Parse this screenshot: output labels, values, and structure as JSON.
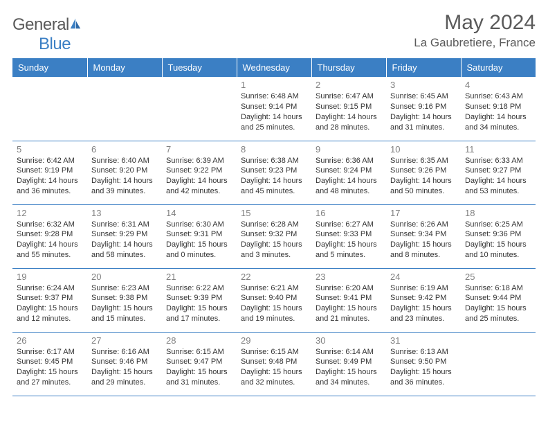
{
  "logo": {
    "text_general": "General",
    "text_blue": "Blue"
  },
  "header": {
    "title": "May 2024",
    "location": "La Gaubretiere, France"
  },
  "colors": {
    "header_bg": "#3b7fc4",
    "header_text": "#ffffff",
    "daynum": "#808080",
    "cell_text": "#333333",
    "rule": "#3b7fc4",
    "title": "#5a5a5a"
  },
  "typography": {
    "title_fontsize": 30,
    "location_fontsize": 17,
    "header_fontsize": 13,
    "daynum_fontsize": 13,
    "cell_fontsize": 11
  },
  "days": [
    "Sunday",
    "Monday",
    "Tuesday",
    "Wednesday",
    "Thursday",
    "Friday",
    "Saturday"
  ],
  "weeks": [
    [
      {
        "num": "",
        "sunrise": "",
        "sunset": "",
        "daylight": ""
      },
      {
        "num": "",
        "sunrise": "",
        "sunset": "",
        "daylight": ""
      },
      {
        "num": "",
        "sunrise": "",
        "sunset": "",
        "daylight": ""
      },
      {
        "num": "1",
        "sunrise": "Sunrise: 6:48 AM",
        "sunset": "Sunset: 9:14 PM",
        "daylight": "Daylight: 14 hours and 25 minutes."
      },
      {
        "num": "2",
        "sunrise": "Sunrise: 6:47 AM",
        "sunset": "Sunset: 9:15 PM",
        "daylight": "Daylight: 14 hours and 28 minutes."
      },
      {
        "num": "3",
        "sunrise": "Sunrise: 6:45 AM",
        "sunset": "Sunset: 9:16 PM",
        "daylight": "Daylight: 14 hours and 31 minutes."
      },
      {
        "num": "4",
        "sunrise": "Sunrise: 6:43 AM",
        "sunset": "Sunset: 9:18 PM",
        "daylight": "Daylight: 14 hours and 34 minutes."
      }
    ],
    [
      {
        "num": "5",
        "sunrise": "Sunrise: 6:42 AM",
        "sunset": "Sunset: 9:19 PM",
        "daylight": "Daylight: 14 hours and 36 minutes."
      },
      {
        "num": "6",
        "sunrise": "Sunrise: 6:40 AM",
        "sunset": "Sunset: 9:20 PM",
        "daylight": "Daylight: 14 hours and 39 minutes."
      },
      {
        "num": "7",
        "sunrise": "Sunrise: 6:39 AM",
        "sunset": "Sunset: 9:22 PM",
        "daylight": "Daylight: 14 hours and 42 minutes."
      },
      {
        "num": "8",
        "sunrise": "Sunrise: 6:38 AM",
        "sunset": "Sunset: 9:23 PM",
        "daylight": "Daylight: 14 hours and 45 minutes."
      },
      {
        "num": "9",
        "sunrise": "Sunrise: 6:36 AM",
        "sunset": "Sunset: 9:24 PM",
        "daylight": "Daylight: 14 hours and 48 minutes."
      },
      {
        "num": "10",
        "sunrise": "Sunrise: 6:35 AM",
        "sunset": "Sunset: 9:26 PM",
        "daylight": "Daylight: 14 hours and 50 minutes."
      },
      {
        "num": "11",
        "sunrise": "Sunrise: 6:33 AM",
        "sunset": "Sunset: 9:27 PM",
        "daylight": "Daylight: 14 hours and 53 minutes."
      }
    ],
    [
      {
        "num": "12",
        "sunrise": "Sunrise: 6:32 AM",
        "sunset": "Sunset: 9:28 PM",
        "daylight": "Daylight: 14 hours and 55 minutes."
      },
      {
        "num": "13",
        "sunrise": "Sunrise: 6:31 AM",
        "sunset": "Sunset: 9:29 PM",
        "daylight": "Daylight: 14 hours and 58 minutes."
      },
      {
        "num": "14",
        "sunrise": "Sunrise: 6:30 AM",
        "sunset": "Sunset: 9:31 PM",
        "daylight": "Daylight: 15 hours and 0 minutes."
      },
      {
        "num": "15",
        "sunrise": "Sunrise: 6:28 AM",
        "sunset": "Sunset: 9:32 PM",
        "daylight": "Daylight: 15 hours and 3 minutes."
      },
      {
        "num": "16",
        "sunrise": "Sunrise: 6:27 AM",
        "sunset": "Sunset: 9:33 PM",
        "daylight": "Daylight: 15 hours and 5 minutes."
      },
      {
        "num": "17",
        "sunrise": "Sunrise: 6:26 AM",
        "sunset": "Sunset: 9:34 PM",
        "daylight": "Daylight: 15 hours and 8 minutes."
      },
      {
        "num": "18",
        "sunrise": "Sunrise: 6:25 AM",
        "sunset": "Sunset: 9:36 PM",
        "daylight": "Daylight: 15 hours and 10 minutes."
      }
    ],
    [
      {
        "num": "19",
        "sunrise": "Sunrise: 6:24 AM",
        "sunset": "Sunset: 9:37 PM",
        "daylight": "Daylight: 15 hours and 12 minutes."
      },
      {
        "num": "20",
        "sunrise": "Sunrise: 6:23 AM",
        "sunset": "Sunset: 9:38 PM",
        "daylight": "Daylight: 15 hours and 15 minutes."
      },
      {
        "num": "21",
        "sunrise": "Sunrise: 6:22 AM",
        "sunset": "Sunset: 9:39 PM",
        "daylight": "Daylight: 15 hours and 17 minutes."
      },
      {
        "num": "22",
        "sunrise": "Sunrise: 6:21 AM",
        "sunset": "Sunset: 9:40 PM",
        "daylight": "Daylight: 15 hours and 19 minutes."
      },
      {
        "num": "23",
        "sunrise": "Sunrise: 6:20 AM",
        "sunset": "Sunset: 9:41 PM",
        "daylight": "Daylight: 15 hours and 21 minutes."
      },
      {
        "num": "24",
        "sunrise": "Sunrise: 6:19 AM",
        "sunset": "Sunset: 9:42 PM",
        "daylight": "Daylight: 15 hours and 23 minutes."
      },
      {
        "num": "25",
        "sunrise": "Sunrise: 6:18 AM",
        "sunset": "Sunset: 9:44 PM",
        "daylight": "Daylight: 15 hours and 25 minutes."
      }
    ],
    [
      {
        "num": "26",
        "sunrise": "Sunrise: 6:17 AM",
        "sunset": "Sunset: 9:45 PM",
        "daylight": "Daylight: 15 hours and 27 minutes."
      },
      {
        "num": "27",
        "sunrise": "Sunrise: 6:16 AM",
        "sunset": "Sunset: 9:46 PM",
        "daylight": "Daylight: 15 hours and 29 minutes."
      },
      {
        "num": "28",
        "sunrise": "Sunrise: 6:15 AM",
        "sunset": "Sunset: 9:47 PM",
        "daylight": "Daylight: 15 hours and 31 minutes."
      },
      {
        "num": "29",
        "sunrise": "Sunrise: 6:15 AM",
        "sunset": "Sunset: 9:48 PM",
        "daylight": "Daylight: 15 hours and 32 minutes."
      },
      {
        "num": "30",
        "sunrise": "Sunrise: 6:14 AM",
        "sunset": "Sunset: 9:49 PM",
        "daylight": "Daylight: 15 hours and 34 minutes."
      },
      {
        "num": "31",
        "sunrise": "Sunrise: 6:13 AM",
        "sunset": "Sunset: 9:50 PM",
        "daylight": "Daylight: 15 hours and 36 minutes."
      },
      {
        "num": "",
        "sunrise": "",
        "sunset": "",
        "daylight": ""
      }
    ]
  ]
}
